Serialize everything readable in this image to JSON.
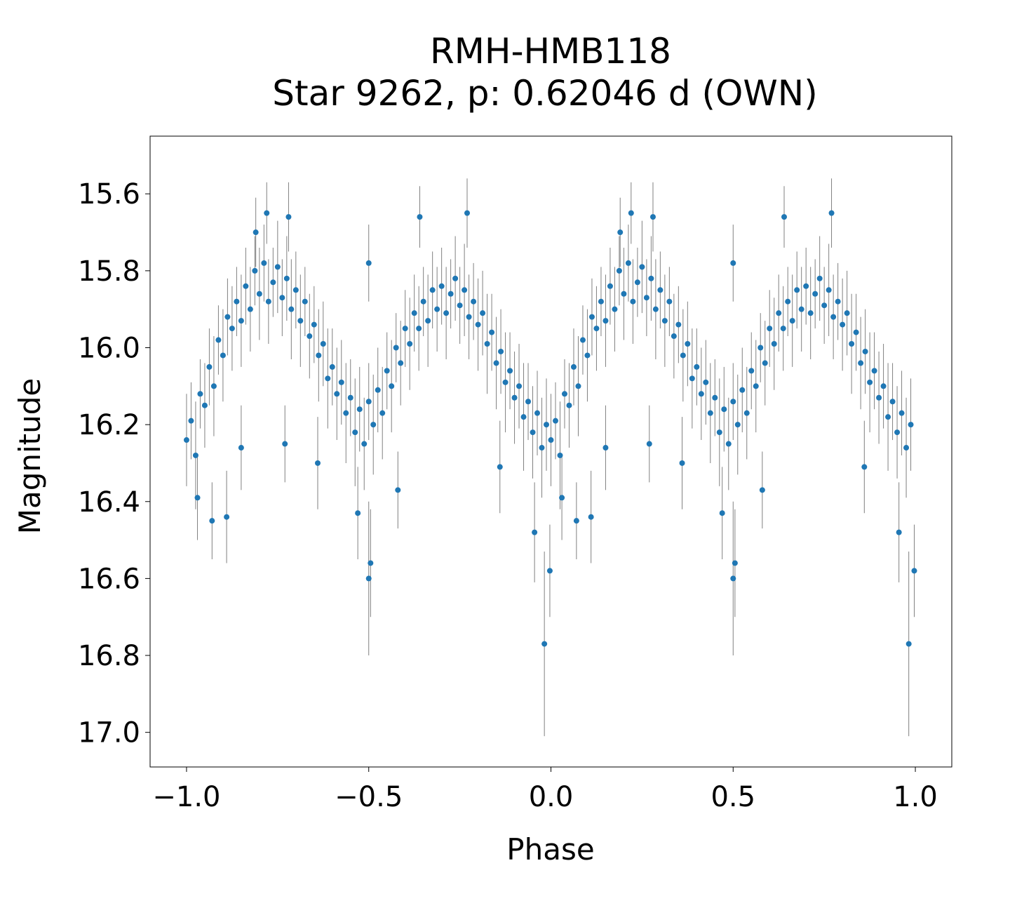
{
  "chart_data": {
    "type": "scatter",
    "title": "RMH-HMB118",
    "subtitle": "Star 9262, p: 0.62046 d (OWN)",
    "xlabel": "Phase",
    "ylabel": "Magnitude",
    "xlim": [
      -1.1,
      1.1
    ],
    "ylim": [
      15.45,
      17.09
    ],
    "y_inverted": true,
    "grid": false,
    "x_ticks": [
      -1.0,
      -0.5,
      0.0,
      0.5,
      1.0
    ],
    "x_tick_labels": [
      "−1.0",
      "−0.5",
      "0.0",
      "0.5",
      "1.0"
    ],
    "y_ticks": [
      15.6,
      15.8,
      16.0,
      16.2,
      16.4,
      16.6,
      16.8,
      17.0
    ],
    "y_tick_labels": [
      "15.6",
      "15.8",
      "16.0",
      "16.2",
      "16.4",
      "16.6",
      "16.8",
      "17.0"
    ],
    "marker_color": "#1f77b4",
    "errorbar_color": "#808080",
    "phase_repeated": [
      0,
      -1
    ],
    "points": [
      [
        0.0,
        16.24,
        0.12
      ],
      [
        0.0125,
        16.19,
        0.1
      ],
      [
        0.025,
        16.28,
        0.14
      ],
      [
        0.0375,
        16.12,
        0.09
      ],
      [
        0.05,
        16.15,
        0.11
      ],
      [
        0.0625,
        16.05,
        0.1
      ],
      [
        0.075,
        16.1,
        0.13
      ],
      [
        0.0875,
        15.98,
        0.09
      ],
      [
        0.1,
        16.02,
        0.12
      ],
      [
        0.1125,
        15.92,
        0.1
      ],
      [
        0.125,
        15.95,
        0.11
      ],
      [
        0.1375,
        15.88,
        0.09
      ],
      [
        0.15,
        15.93,
        0.12
      ],
      [
        0.1625,
        15.84,
        0.1
      ],
      [
        0.175,
        15.9,
        0.11
      ],
      [
        0.1875,
        15.8,
        0.09
      ],
      [
        0.2,
        15.86,
        0.12
      ],
      [
        0.2125,
        15.78,
        0.1
      ],
      [
        0.225,
        15.88,
        0.11
      ],
      [
        0.2375,
        15.83,
        0.09
      ],
      [
        0.25,
        15.79,
        0.12
      ],
      [
        0.2625,
        15.87,
        0.1
      ],
      [
        0.275,
        15.82,
        0.11
      ],
      [
        0.2875,
        15.9,
        0.13
      ],
      [
        0.3,
        15.85,
        0.1
      ],
      [
        0.3125,
        15.93,
        0.12
      ],
      [
        0.325,
        15.88,
        0.09
      ],
      [
        0.3375,
        15.97,
        0.11
      ],
      [
        0.35,
        15.94,
        0.1
      ],
      [
        0.3625,
        16.02,
        0.12
      ],
      [
        0.375,
        15.99,
        0.11
      ],
      [
        0.3875,
        16.08,
        0.13
      ],
      [
        0.4,
        16.05,
        0.1
      ],
      [
        0.4125,
        16.12,
        0.12
      ],
      [
        0.425,
        16.09,
        0.11
      ],
      [
        0.4375,
        16.17,
        0.13
      ],
      [
        0.45,
        16.13,
        0.1
      ],
      [
        0.4625,
        16.22,
        0.14
      ],
      [
        0.475,
        16.16,
        0.11
      ],
      [
        0.4875,
        16.25,
        0.12
      ],
      [
        0.5,
        16.14,
        0.1
      ],
      [
        0.5125,
        16.2,
        0.13
      ],
      [
        0.525,
        16.11,
        0.11
      ],
      [
        0.5375,
        16.17,
        0.12
      ],
      [
        0.55,
        16.06,
        0.1
      ],
      [
        0.5625,
        16.1,
        0.12
      ],
      [
        0.575,
        16.0,
        0.09
      ],
      [
        0.5875,
        16.04,
        0.11
      ],
      [
        0.6,
        15.95,
        0.1
      ],
      [
        0.6125,
        15.99,
        0.12
      ],
      [
        0.625,
        15.91,
        0.1
      ],
      [
        0.6375,
        15.95,
        0.11
      ],
      [
        0.65,
        15.88,
        0.09
      ],
      [
        0.6625,
        15.93,
        0.12
      ],
      [
        0.675,
        15.85,
        0.1
      ],
      [
        0.6875,
        15.9,
        0.11
      ],
      [
        0.7,
        15.84,
        0.1
      ],
      [
        0.7125,
        15.91,
        0.12
      ],
      [
        0.725,
        15.86,
        0.09
      ],
      [
        0.7375,
        15.82,
        0.11
      ],
      [
        0.75,
        15.89,
        0.1
      ],
      [
        0.7625,
        15.85,
        0.12
      ],
      [
        0.775,
        15.92,
        0.11
      ],
      [
        0.7875,
        15.88,
        0.1
      ],
      [
        0.8,
        15.94,
        0.12
      ],
      [
        0.8125,
        15.91,
        0.11
      ],
      [
        0.825,
        15.99,
        0.13
      ],
      [
        0.8375,
        15.96,
        0.1
      ],
      [
        0.85,
        16.04,
        0.12
      ],
      [
        0.8625,
        16.01,
        0.11
      ],
      [
        0.875,
        16.09,
        0.13
      ],
      [
        0.8875,
        16.06,
        0.1
      ],
      [
        0.9,
        16.13,
        0.12
      ],
      [
        0.9125,
        16.1,
        0.11
      ],
      [
        0.925,
        16.18,
        0.14
      ],
      [
        0.9375,
        16.14,
        0.1
      ],
      [
        0.95,
        16.22,
        0.12
      ],
      [
        0.9625,
        16.17,
        0.11
      ],
      [
        0.975,
        16.26,
        0.13
      ],
      [
        0.9875,
        16.2,
        0.12
      ],
      [
        0.982,
        16.77,
        0.24
      ],
      [
        0.997,
        16.58,
        0.12
      ],
      [
        0.5,
        16.6,
        0.2
      ],
      [
        0.505,
        16.56,
        0.14
      ],
      [
        0.07,
        16.45,
        0.1
      ],
      [
        0.11,
        16.44,
        0.12
      ],
      [
        0.27,
        16.25,
        0.1
      ],
      [
        0.22,
        15.65,
        0.08
      ],
      [
        0.28,
        15.66,
        0.09
      ],
      [
        0.5,
        15.78,
        0.1
      ],
      [
        0.64,
        15.66,
        0.08
      ],
      [
        0.77,
        15.65,
        0.09
      ],
      [
        0.15,
        16.26,
        0.11
      ],
      [
        0.47,
        16.43,
        0.12
      ],
      [
        0.955,
        16.48,
        0.13
      ],
      [
        0.36,
        16.3,
        0.12
      ],
      [
        0.58,
        16.37,
        0.1
      ],
      [
        0.86,
        16.31,
        0.12
      ],
      [
        0.03,
        16.39,
        0.11
      ],
      [
        0.19,
        15.7,
        0.09
      ]
    ]
  }
}
